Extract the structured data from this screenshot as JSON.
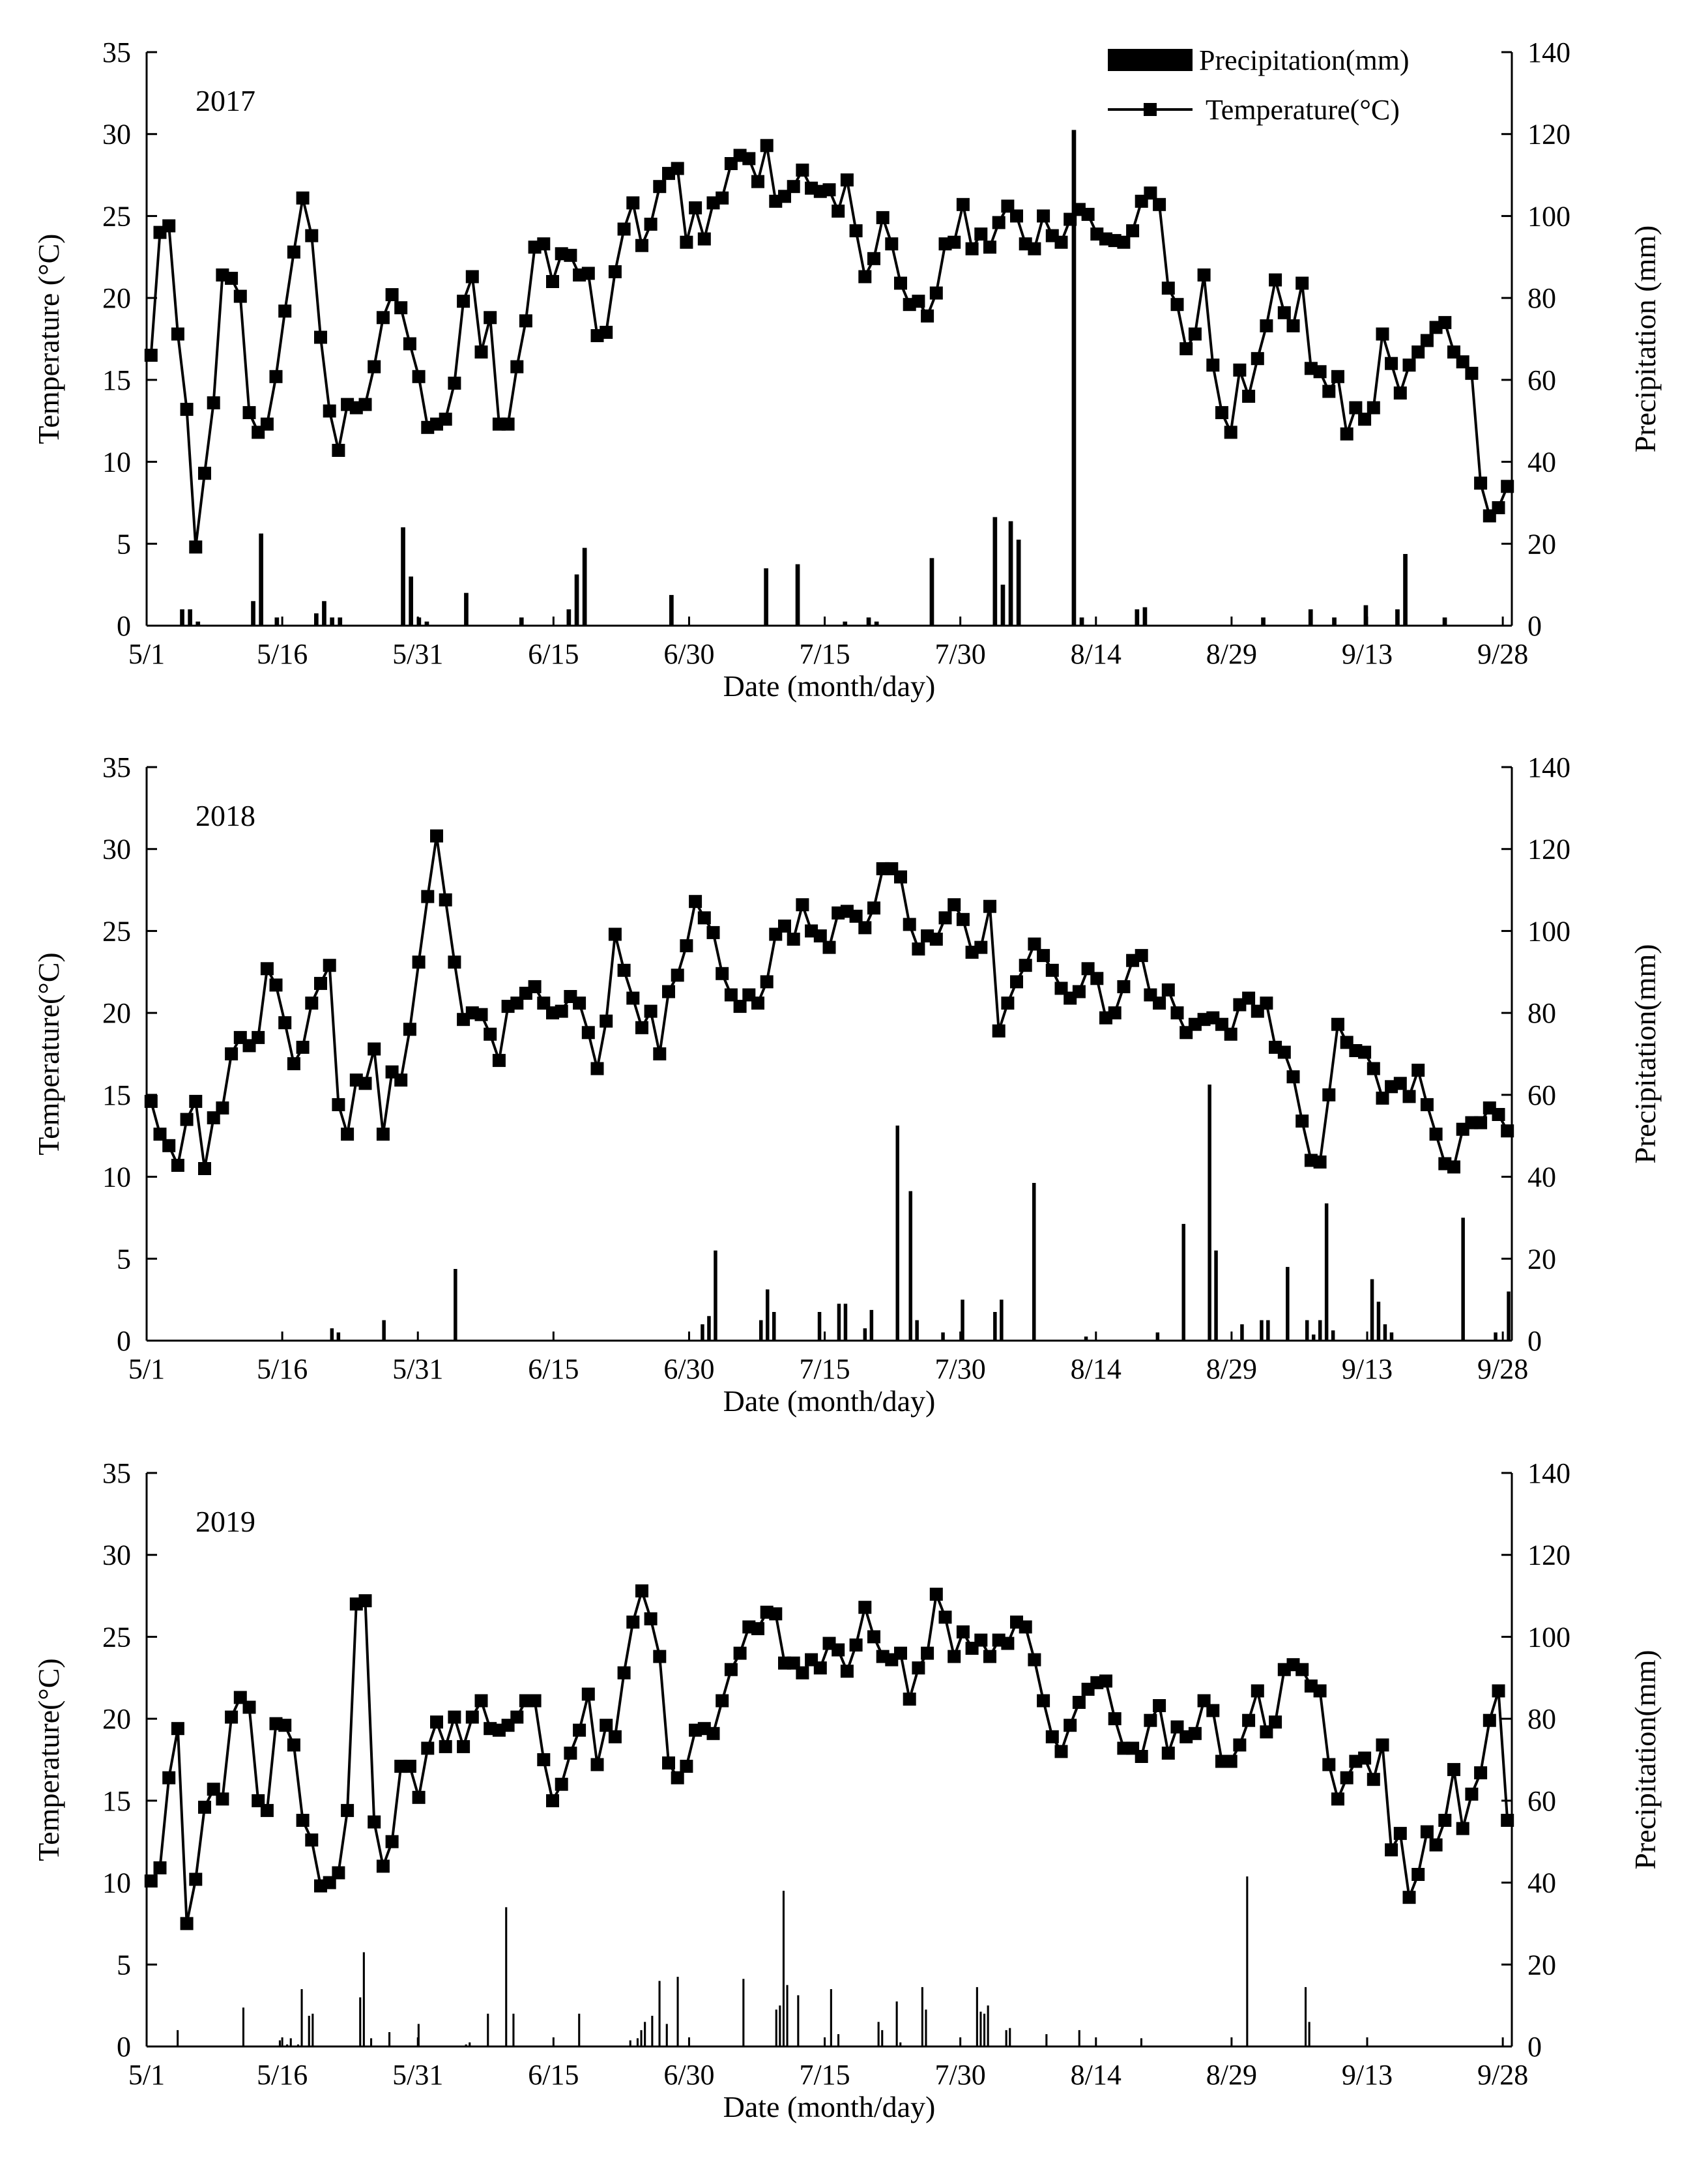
{
  "chart_data": [
    {
      "type": "bar+line",
      "year_label": "2017",
      "xlabel": "Date (month/day)",
      "ylabel_left": "Temperature (°C)",
      "ylabel_right": "Precipitation (mm)",
      "ylim_left": [
        0,
        35
      ],
      "ylim_right": [
        0,
        140
      ],
      "yticks_left": [
        "0",
        "5",
        "10",
        "15",
        "20",
        "25",
        "30",
        "35"
      ],
      "yticks_right": [
        "0",
        "20",
        "40",
        "60",
        "80",
        "100",
        "120",
        "140"
      ],
      "xticks": [
        "5/1",
        "5/16",
        "5/31",
        "6/15",
        "6/30",
        "7/15",
        "7/30",
        "8/14",
        "8/29",
        "9/13",
        "9/28"
      ],
      "legend": {
        "position": "top-right",
        "precipitation": "Precipitation(mm)",
        "temperature": "Temperature(°C)"
      },
      "temperature": [
        16.5,
        24,
        24.4,
        17.8,
        13.2,
        4.8,
        9.3,
        13.6,
        21.4,
        21.2,
        20.1,
        13,
        11.8,
        12.3,
        15.2,
        19.2,
        22.8,
        26.1,
        23.8,
        17.6,
        13.1,
        10.7,
        13.5,
        13.3,
        13.5,
        15.8,
        18.8,
        20.2,
        19.4,
        17.2,
        15.2,
        12.1,
        12.3,
        12.6,
        14.8,
        19.8,
        21.3,
        16.7,
        18.8,
        12.3,
        12.3,
        15.8,
        18.6,
        23.1,
        23.3,
        21,
        22.7,
        22.6,
        21.4,
        21.5,
        17.7,
        17.9,
        21.6,
        24.2,
        25.8,
        23.2,
        24.5,
        26.8,
        27.6,
        27.9,
        23.4,
        25.5,
        23.6,
        25.8,
        26.1,
        28.2,
        28.7,
        28.5,
        27.1,
        29.3,
        25.9,
        26.2,
        26.8,
        27.8,
        26.7,
        26.5,
        26.6,
        25.3,
        27.2,
        24.1,
        21.3,
        22.4,
        24.9,
        23.3,
        20.9,
        19.6,
        19.8,
        18.9,
        20.3,
        23.3,
        23.4,
        25.7,
        23,
        23.9,
        23.1,
        24.6,
        25.6,
        25,
        23.3,
        23,
        25,
        23.8,
        23.4,
        24.8,
        25.4,
        25.1,
        23.9,
        23.6,
        23.5,
        23.4,
        24.1,
        25.9,
        26.4,
        25.7,
        20.6,
        19.6,
        16.9,
        17.8,
        21.4,
        15.9,
        13,
        11.8,
        15.6,
        14,
        16.3,
        18.3,
        21.1,
        19.1,
        18.3,
        20.9,
        15.7,
        15.5,
        14.3,
        15.2,
        11.7,
        13.3,
        12.6,
        13.3,
        17.8,
        16,
        14.2,
        15.9,
        16.7,
        17.4,
        18.2,
        18.5,
        16.7,
        16.1,
        15.4,
        8.7,
        6.7,
        7.2,
        8.5
      ],
      "precipitation": [
        0,
        0,
        0,
        0,
        4,
        4,
        1,
        0,
        0,
        0,
        0,
        0,
        0,
        6,
        22.5,
        0,
        2,
        0,
        0,
        0,
        0,
        3,
        6,
        2,
        2,
        0,
        0,
        0,
        0,
        0,
        0,
        0,
        24,
        12,
        2,
        1,
        0,
        0,
        0,
        0,
        8,
        0,
        0,
        0,
        0,
        0,
        0,
        2,
        0,
        0,
        0,
        0,
        0,
        4,
        12.5,
        19,
        0,
        0,
        0,
        0,
        0,
        0,
        0,
        0,
        0,
        0,
        7.5,
        0,
        0,
        0,
        0,
        0,
        0,
        0,
        0,
        0,
        0,
        0,
        14,
        0,
        0,
        0,
        15,
        0,
        0,
        0,
        0,
        0,
        1,
        0,
        0,
        2,
        1,
        0,
        0,
        0,
        0,
        0,
        0,
        16.5,
        0,
        0,
        0,
        0,
        0,
        0,
        0,
        26.5,
        10,
        25.5,
        21,
        0,
        0,
        0,
        0,
        0,
        0,
        121,
        2,
        0,
        0,
        0,
        0,
        0,
        0,
        4,
        4.5,
        0,
        0,
        0,
        0,
        0,
        0,
        0,
        0,
        0,
        0,
        0,
        0,
        0,
        0,
        2,
        0,
        0,
        0,
        0,
        0,
        4,
        0,
        0,
        2,
        0,
        0,
        0,
        5,
        0,
        0,
        0,
        4,
        17.5,
        0,
        0,
        0,
        0,
        2,
        0,
        0,
        0,
        0,
        0,
        0,
        0,
        0
      ]
    },
    {
      "type": "bar+line",
      "year_label": "2018",
      "xlabel": "Date (month/day)",
      "ylabel_left": "Temperature(°C)",
      "ylabel_right": "Precipitation(mm)",
      "ylim_left": [
        0,
        35
      ],
      "ylim_right": [
        0,
        140
      ],
      "yticks_left": [
        "0",
        "5",
        "10",
        "15",
        "20",
        "25",
        "30",
        "35"
      ],
      "yticks_right": [
        "0",
        "20",
        "40",
        "60",
        "80",
        "100",
        "120",
        "140"
      ],
      "xticks": [
        "5/1",
        "5/16",
        "5/31",
        "6/15",
        "6/30",
        "7/15",
        "7/30",
        "8/14",
        "8/29",
        "9/13",
        "9/28"
      ],
      "temperature": [
        14.6,
        12.6,
        11.9,
        10.7,
        13.5,
        14.6,
        10.5,
        13.6,
        14.2,
        17.5,
        18.5,
        18,
        18.5,
        22.7,
        21.7,
        19.4,
        16.9,
        17.9,
        20.6,
        21.8,
        22.9,
        14.4,
        12.6,
        15.9,
        15.7,
        17.8,
        12.6,
        16.4,
        15.9,
        19,
        23.1,
        27.1,
        30.8,
        26.9,
        23.1,
        19.6,
        20,
        19.9,
        18.7,
        17.1,
        20.4,
        20.6,
        21.2,
        21.6,
        20.6,
        20,
        20.1,
        21,
        20.6,
        18.8,
        16.6,
        19.5,
        24.8,
        22.6,
        20.9,
        19.1,
        20.1,
        17.5,
        21.3,
        22.3,
        24.1,
        26.8,
        25.8,
        24.9,
        22.4,
        21.1,
        20.4,
        21.1,
        20.6,
        21.9,
        24.8,
        25.3,
        24.5,
        26.6,
        25,
        24.7,
        24,
        26.1,
        26.2,
        25.9,
        25.2,
        26.4,
        28.8,
        28.8,
        28.3,
        25.4,
        23.9,
        24.7,
        24.5,
        25.8,
        26.6,
        25.7,
        23.7,
        24,
        26.5,
        18.9,
        20.6,
        21.9,
        22.9,
        24.2,
        23.5,
        22.6,
        21.5,
        20.9,
        21.3,
        22.7,
        22.1,
        19.7,
        20,
        21.6,
        23.2,
        23.5,
        21.1,
        20.6,
        21.4,
        20,
        18.8,
        19.3,
        19.6,
        19.7,
        19.3,
        18.7,
        20.5,
        20.9,
        20.1,
        20.6,
        17.9,
        17.6,
        16.1,
        13.4,
        11,
        10.9,
        15,
        19.3,
        18.2,
        17.7,
        17.6,
        16.6,
        14.8,
        15.5,
        15.7,
        14.9,
        16.5,
        14.4,
        12.6,
        10.8,
        10.6,
        12.9,
        13.3,
        13.3,
        14.2,
        13.8,
        12.8
      ],
      "precipitation": [
        0,
        0,
        0,
        0,
        0,
        0,
        0,
        0,
        0,
        0,
        0,
        0,
        0,
        0,
        0,
        0,
        0,
        0,
        0,
        0,
        0,
        0,
        0,
        0,
        0,
        0,
        0,
        0,
        3,
        2,
        0,
        0,
        0,
        0,
        0,
        0,
        5,
        0,
        0,
        0,
        0,
        0,
        0,
        0,
        0,
        0,
        0,
        17.5,
        0,
        0,
        0,
        0,
        0,
        0,
        0,
        0,
        0,
        0,
        0,
        0,
        0,
        0,
        0,
        0,
        0,
        0,
        0,
        0,
        0,
        0,
        0,
        0,
        0,
        0,
        0,
        0,
        0,
        0,
        0,
        0,
        0,
        0,
        0,
        0,
        0,
        4,
        6,
        22,
        0,
        0,
        0,
        0,
        0,
        0,
        5,
        12.5,
        7,
        0,
        0,
        0,
        0,
        0,
        0,
        7,
        0,
        0,
        9,
        9,
        0,
        0,
        3,
        7.5,
        0,
        0,
        0,
        52.5,
        0,
        36.5,
        5,
        0,
        0,
        0,
        2,
        0,
        0,
        10,
        0,
        0,
        0,
        0,
        7,
        10,
        0,
        0,
        0,
        0,
        38.5,
        0,
        0,
        0,
        0,
        0,
        0,
        0,
        1,
        0,
        0,
        0,
        0,
        0,
        0,
        0,
        0,
        0,
        0,
        2,
        0,
        0,
        0,
        28.5,
        0,
        0,
        0,
        62.5,
        22,
        0,
        0,
        0,
        4,
        0,
        0,
        5,
        5,
        0,
        0,
        18,
        0,
        0,
        5,
        1.5,
        5,
        33.5,
        2.5,
        0,
        0,
        0,
        0,
        0,
        15,
        9.5,
        4,
        2,
        0,
        0,
        0,
        0,
        0,
        0,
        0,
        0,
        0,
        0,
        30,
        0,
        0,
        0,
        0,
        2,
        0,
        12
      ]
    },
    {
      "type": "bar+line",
      "year_label": "2019",
      "xlabel": "Date (month/day)",
      "ylabel_left": "Temperature(°C)",
      "ylabel_right": "Precipitation(mm)",
      "ylim_left": [
        0,
        35
      ],
      "ylim_right": [
        0,
        140
      ],
      "yticks_left": [
        "0",
        "5",
        "10",
        "15",
        "20",
        "25",
        "30",
        "35"
      ],
      "yticks_right": [
        "0",
        "20",
        "40",
        "60",
        "80",
        "100",
        "120",
        "140"
      ],
      "xticks": [
        "5/1",
        "5/16",
        "5/31",
        "6/15",
        "6/30",
        "7/15",
        "7/30",
        "8/14",
        "8/29",
        "9/13",
        "9/28"
      ],
      "temperature": [
        10.1,
        10.9,
        16.4,
        19.4,
        7.5,
        10.2,
        14.6,
        15.7,
        15.1,
        20.1,
        21.3,
        20.7,
        15,
        14.4,
        19.7,
        19.6,
        18.4,
        13.8,
        12.6,
        9.8,
        10,
        10.6,
        14.4,
        27,
        27.2,
        13.7,
        11,
        12.5,
        17.1,
        17.1,
        15.2,
        18.2,
        19.8,
        18.3,
        20.1,
        18.3,
        20.1,
        21.1,
        19.4,
        19.3,
        19.6,
        20.1,
        21.1,
        21.1,
        17.5,
        15,
        16,
        17.9,
        19.3,
        21.5,
        17.2,
        19.6,
        18.9,
        22.8,
        25.9,
        27.8,
        26.1,
        23.8,
        17.3,
        16.4,
        17.1,
        19.3,
        19.4,
        19.1,
        21.1,
        23,
        24,
        25.6,
        25.5,
        26.5,
        26.4,
        23.4,
        23.4,
        22.8,
        23.6,
        23.1,
        24.6,
        24.2,
        22.9,
        24.5,
        26.8,
        25,
        23.8,
        23.6,
        24,
        21.2,
        23.1,
        24,
        27.6,
        26.2,
        23.8,
        25.3,
        24.3,
        24.8,
        23.8,
        24.8,
        24.6,
        25.9,
        25.6,
        23.6,
        21.1,
        18.9,
        18,
        19.6,
        21,
        21.8,
        22.2,
        22.3,
        20,
        18.2,
        18.2,
        17.7,
        19.9,
        20.8,
        17.9,
        19.5,
        18.9,
        19.1,
        21.1,
        20.5,
        17.4,
        17.4,
        18.4,
        19.9,
        21.7,
        19.2,
        19.8,
        23,
        23.3,
        23,
        22,
        21.7,
        17.2,
        15.1,
        16.4,
        17.4,
        17.6,
        16.3,
        18.4,
        12,
        13,
        9.1,
        10.5,
        13.1,
        12.3,
        13.8,
        16.9,
        13.3,
        15.4,
        16.7,
        19.9,
        21.7,
        13.8
      ],
      "precipitation": [
        0,
        0,
        0,
        0,
        0,
        0,
        0,
        0,
        4,
        0,
        0,
        0,
        0,
        0,
        0,
        0,
        0,
        0,
        0,
        0,
        0,
        0,
        0,
        0,
        0,
        0,
        9.5,
        0,
        0,
        0,
        0,
        0,
        0,
        0,
        0,
        0,
        1.5,
        0,
        0.5,
        2,
        0,
        0.5,
        14,
        0,
        7.5,
        8,
        0,
        0,
        0,
        0,
        0,
        0,
        0,
        0,
        0,
        0,
        0,
        0,
        12,
        23,
        0,
        2,
        0,
        0,
        0,
        0,
        3.5,
        0,
        0,
        0,
        0,
        0,
        0,
        0,
        5.5,
        0,
        0,
        0,
        0,
        0,
        0,
        0,
        0,
        0,
        0,
        0,
        0,
        0.5,
        1,
        0,
        0,
        0,
        0,
        8,
        0,
        0,
        0,
        0,
        34,
        0,
        8,
        0,
        0,
        0,
        0,
        0,
        0,
        0,
        0,
        0,
        0,
        0,
        0,
        0,
        0,
        0,
        0,
        0,
        8,
        0,
        0,
        0,
        0,
        0,
        0,
        0,
        0,
        0,
        0,
        0,
        0,
        0,
        1.5,
        0,
        2,
        4,
        6,
        0,
        7.5,
        0,
        16,
        0,
        5.5,
        0,
        0,
        17,
        0,
        0,
        0,
        0,
        0,
        0,
        0,
        0,
        0,
        0,
        0,
        0,
        0,
        0,
        0,
        0,
        0,
        16.5,
        0,
        0,
        0,
        0,
        0,
        0,
        0,
        0,
        9,
        10,
        38,
        15,
        0,
        0,
        12.5,
        0,
        0,
        0,
        0,
        0,
        0,
        0,
        0,
        14,
        0,
        3,
        0,
        0,
        0,
        0,
        0,
        0,
        0,
        0,
        0,
        0,
        6,
        4,
        0,
        0,
        0,
        11,
        1,
        0,
        0,
        0,
        0,
        0,
        14.5,
        9,
        0,
        0,
        0,
        0,
        0,
        0,
        0,
        0,
        0,
        0,
        0,
        0,
        0,
        14.5,
        8.5,
        8,
        10,
        0,
        0,
        0,
        0,
        4,
        4.5,
        0,
        0,
        0,
        0,
        0,
        0,
        0,
        0,
        0,
        3,
        0,
        0,
        0,
        0,
        0,
        0,
        0,
        0,
        4,
        0,
        0,
        0,
        0,
        0,
        0,
        0,
        0,
        0,
        0,
        0,
        0,
        0,
        0,
        0,
        0,
        2,
        0,
        0,
        0,
        0,
        0,
        0,
        0,
        0,
        0,
        0,
        0,
        0,
        0,
        0,
        0,
        0,
        0,
        0,
        0,
        0,
        0,
        0,
        0,
        0,
        0,
        0,
        0,
        0,
        41.5,
        0,
        0,
        0,
        0,
        0,
        0,
        0,
        0,
        0,
        0,
        0,
        0,
        0,
        0,
        0,
        14.5,
        6,
        0,
        0,
        0,
        0,
        0,
        0,
        0,
        0,
        0,
        0,
        0,
        0,
        0,
        0,
        0,
        0,
        0,
        0,
        0,
        0,
        0,
        0,
        0,
        0,
        0,
        0,
        0,
        0,
        0,
        0,
        0,
        0,
        0,
        0,
        0,
        0,
        0,
        0,
        0,
        0,
        0,
        0,
        0,
        0,
        0,
        0,
        0,
        0,
        0,
        0,
        0,
        0,
        0,
        0,
        0
      ]
    }
  ]
}
